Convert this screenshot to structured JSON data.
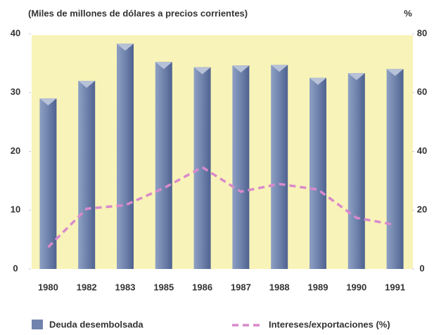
{
  "chart_data": {
    "type": "bar_line",
    "title": "(Miles de millones de dólares a precios corrientes)",
    "y2_label": "%",
    "categories": [
      "1980",
      "1982",
      "1983",
      "1985",
      "1986",
      "1987",
      "1988",
      "1989",
      "1990",
      "1991"
    ],
    "series": [
      {
        "name": "Deuda desembolsada",
        "color": "#6f83ac",
        "values": [
          29.0,
          32.0,
          38.3,
          35.2,
          34.3,
          34.6,
          34.7,
          32.5,
          33.3,
          34.0
        ]
      },
      {
        "name": "Intereses/exportaciones (%)",
        "color": "#d98acb",
        "axis": "y2",
        "values": [
          7.4,
          20.5,
          21.7,
          27.5,
          34.6,
          26.3,
          28.9,
          27.0,
          17.4,
          15.0
        ]
      }
    ],
    "ylim": [
      0,
      40
    ],
    "yticks": [
      0,
      10,
      20,
      30,
      40
    ],
    "y2lim": [
      0,
      80
    ],
    "y2ticks": [
      0,
      20,
      40,
      60,
      80
    ],
    "background": "#f8f3b8"
  }
}
